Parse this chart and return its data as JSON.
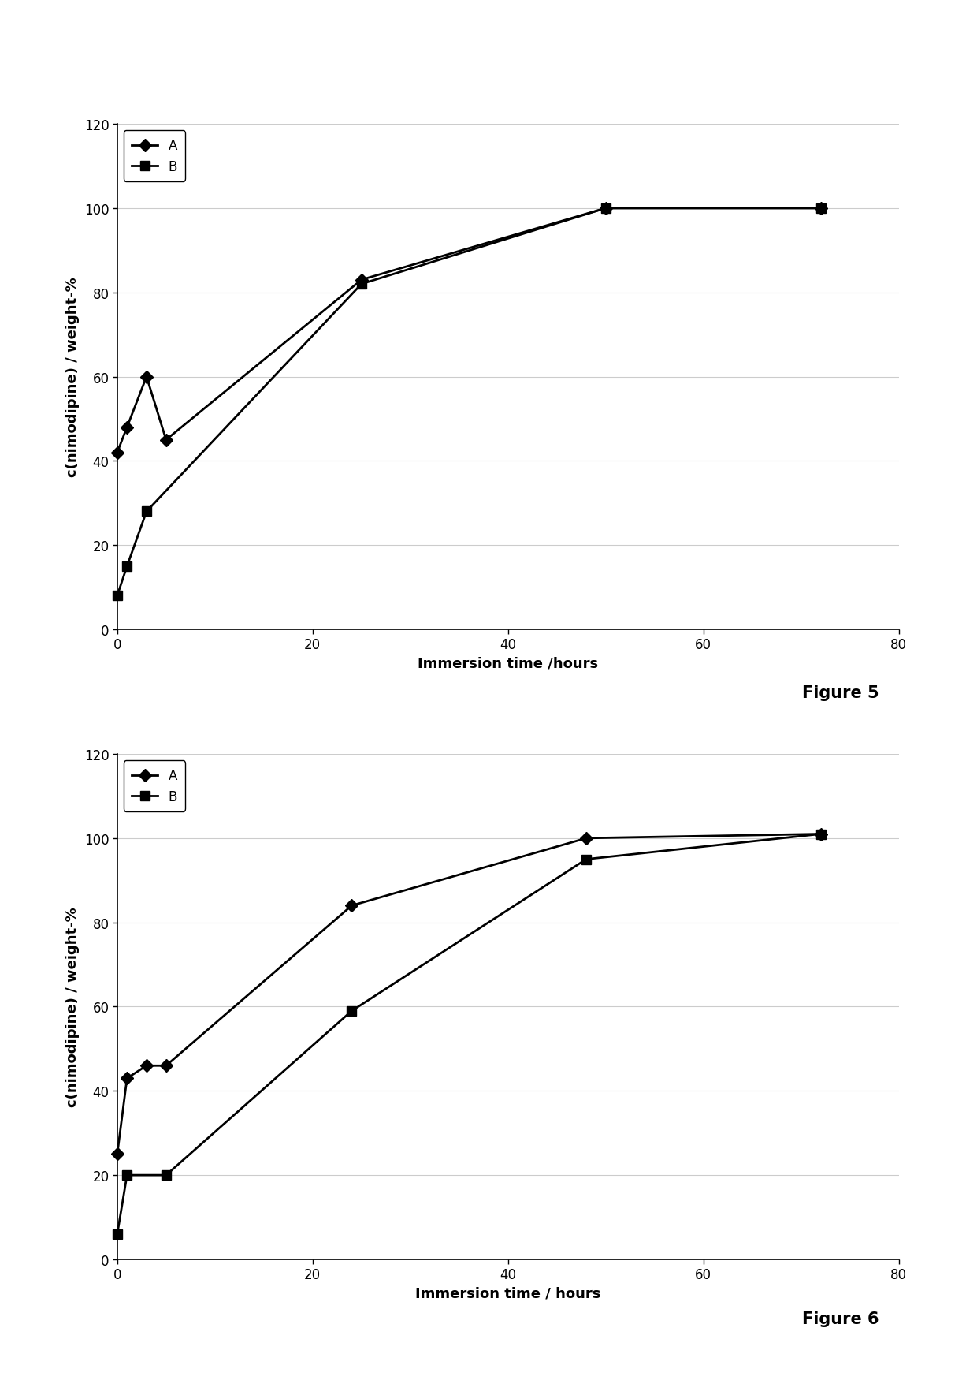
{
  "fig5": {
    "series_A": {
      "x": [
        0,
        1,
        3,
        5,
        25,
        50,
        72
      ],
      "y": [
        42,
        48,
        60,
        45,
        83,
        100,
        100
      ],
      "label": "A",
      "marker": "D",
      "color": "#000000"
    },
    "series_B": {
      "x": [
        0,
        1,
        3,
        25,
        50,
        72
      ],
      "y": [
        8,
        15,
        28,
        82,
        100,
        100
      ],
      "label": "B",
      "marker": "s",
      "color": "#000000"
    },
    "xlabel": "Immersion time /hours",
    "ylabel": "c(nimodipine) / weight-%",
    "xlim": [
      0,
      80
    ],
    "ylim": [
      0,
      120
    ],
    "xticks": [
      0,
      20,
      40,
      60,
      80
    ],
    "yticks": [
      0,
      20,
      40,
      60,
      80,
      100,
      120
    ],
    "figure_label": "Figure 5"
  },
  "fig6": {
    "series_A": {
      "x": [
        0,
        1,
        3,
        5,
        24,
        48,
        72
      ],
      "y": [
        25,
        43,
        46,
        46,
        84,
        100,
        101
      ],
      "label": "A",
      "marker": "D",
      "color": "#000000"
    },
    "series_B": {
      "x": [
        0,
        1,
        5,
        24,
        48,
        72
      ],
      "y": [
        6,
        20,
        20,
        59,
        95,
        101
      ],
      "label": "B",
      "marker": "s",
      "color": "#000000"
    },
    "xlabel": "Immersion time / hours",
    "ylabel": "c(nimodipine) / weight-%",
    "xlim": [
      0,
      80
    ],
    "ylim": [
      0,
      120
    ],
    "xticks": [
      0,
      20,
      40,
      60,
      80
    ],
    "yticks": [
      0,
      20,
      40,
      60,
      80,
      100,
      120
    ],
    "figure_label": "Figure 6"
  },
  "background_color": "#ffffff",
  "line_width": 2.0,
  "marker_size": 8,
  "font_size_axis_label": 13,
  "font_size_tick": 12,
  "font_size_legend": 12,
  "font_size_figure_label": 15
}
